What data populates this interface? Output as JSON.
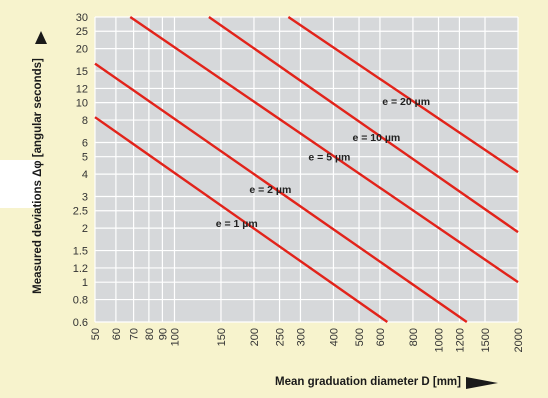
{
  "chart_data": {
    "type": "line",
    "xlabel": "Mean graduation diameter D [mm]",
    "ylabel": "Measured deviations Δφ [angular seconds]",
    "xscale": "log",
    "yscale": "log",
    "xlim": [
      50,
      2000
    ],
    "ylim": [
      0.6,
      30
    ],
    "grid": true,
    "x_ticks": [
      "50",
      "60",
      "70",
      "80",
      "90",
      "100",
      "150",
      "200",
      "250",
      "300",
      "400",
      "500",
      "600",
      "800",
      "1000",
      "1200",
      "1500",
      "2000"
    ],
    "y_ticks": [
      "0.6",
      "0.8",
      "1",
      "1.2",
      "1.5",
      "2",
      "2.5",
      "3",
      "4",
      "5",
      "6",
      "8",
      "10",
      "12",
      "15",
      "20",
      "25",
      "30"
    ],
    "series": [
      {
        "name": "e = 1 µm",
        "x": [
          50,
          640
        ],
        "y": [
          8.3,
          0.6
        ]
      },
      {
        "name": "e = 2 µm",
        "x": [
          50,
          1280
        ],
        "y": [
          16.5,
          0.6
        ]
      },
      {
        "name": "e = 5 µm",
        "x": [
          68,
          2000
        ],
        "y": [
          30,
          1.0
        ]
      },
      {
        "name": "e = 10 µm",
        "x": [
          135,
          2000
        ],
        "y": [
          30,
          1.9
        ]
      },
      {
        "name": "e = 20 µm",
        "x": [
          270,
          2000
        ],
        "y": [
          30,
          4.1
        ]
      }
    ],
    "series_color": "#e2231a"
  }
}
